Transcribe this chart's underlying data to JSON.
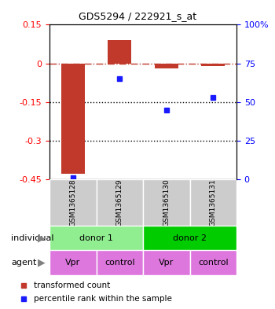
{
  "title": "GDS5294 / 222921_s_at",
  "samples": [
    "GSM1365128",
    "GSM1365129",
    "GSM1365130",
    "GSM1365131"
  ],
  "bar_values": [
    -0.43,
    0.09,
    -0.02,
    -0.01
  ],
  "scatter_values": [
    1,
    65,
    45,
    53
  ],
  "ylim_left": [
    -0.45,
    0.15
  ],
  "ylim_right": [
    0,
    100
  ],
  "yticks_left": [
    0.15,
    0,
    -0.15,
    -0.3,
    -0.45
  ],
  "yticks_right": [
    100,
    75,
    50,
    25,
    0
  ],
  "bar_color": "#c0392b",
  "scatter_color": "#1a1aff",
  "hline_y": 0,
  "dotted_lines": [
    -0.15,
    -0.3
  ],
  "individual_labels": [
    "donor 1",
    "donor 2"
  ],
  "individual_colors": [
    "#90ee90",
    "#00cc44"
  ],
  "agent_labels": [
    "Vpr",
    "control",
    "Vpr",
    "control"
  ],
  "agent_color": "#dd77dd",
  "gsm_bg_color": "#cccccc",
  "legend_bar_label": "transformed count",
  "legend_scatter_label": "percentile rank within the sample",
  "bar_width": 0.5,
  "x_positions": [
    1,
    2,
    3,
    4
  ]
}
